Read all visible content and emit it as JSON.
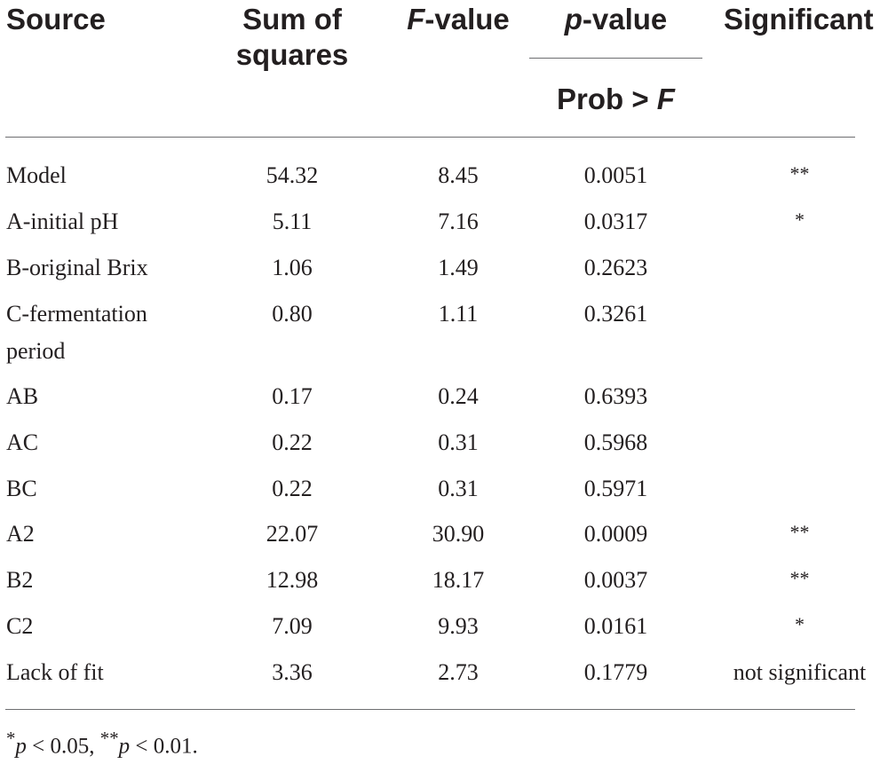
{
  "table": {
    "headers": {
      "source": "Source",
      "sum_line1": "Sum of",
      "sum_line2": "squares",
      "f_italic": "F",
      "f_rest": "-value",
      "p_italic": "p",
      "p_rest": "-value",
      "prob_text": "Prob > ",
      "prob_italic": "F",
      "significant": "Significant"
    },
    "rows": [
      {
        "source": "Model",
        "ss": "54.32",
        "f": "8.45",
        "p": "0.0051",
        "sig": "**"
      },
      {
        "source": "A-initial pH",
        "ss": "5.11",
        "f": "7.16",
        "p": "0.0317",
        "sig": "*"
      },
      {
        "source": "B-original Brix",
        "ss": "1.06",
        "f": "1.49",
        "p": "0.2623",
        "sig": ""
      },
      {
        "source": "C-fermentation",
        "source_line2": "period",
        "ss": "0.80",
        "f": "1.11",
        "p": "0.3261",
        "sig": ""
      },
      {
        "source": "AB",
        "ss": "0.17",
        "f": "0.24",
        "p": "0.6393",
        "sig": ""
      },
      {
        "source": "AC",
        "ss": "0.22",
        "f": "0.31",
        "p": "0.5968",
        "sig": ""
      },
      {
        "source": "BC",
        "ss": "0.22",
        "f": "0.31",
        "p": "0.5971",
        "sig": ""
      },
      {
        "source": "A2",
        "ss": "22.07",
        "f": "30.90",
        "p": "0.0009",
        "sig": "**"
      },
      {
        "source": "B2",
        "ss": "12.98",
        "f": "18.17",
        "p": "0.0037",
        "sig": "**"
      },
      {
        "source": "C2",
        "ss": "7.09",
        "f": "9.93",
        "p": "0.0161",
        "sig": "*"
      },
      {
        "source": "Lack of fit",
        "ss": "3.36",
        "f": "2.73",
        "p": "0.1779",
        "sig": "not significant"
      }
    ]
  },
  "footnote": {
    "star1": "*",
    "p1": "p",
    "cond1": " < 0.05, ",
    "star2": "**",
    "p2": "p",
    "cond2": " < 0.01."
  }
}
